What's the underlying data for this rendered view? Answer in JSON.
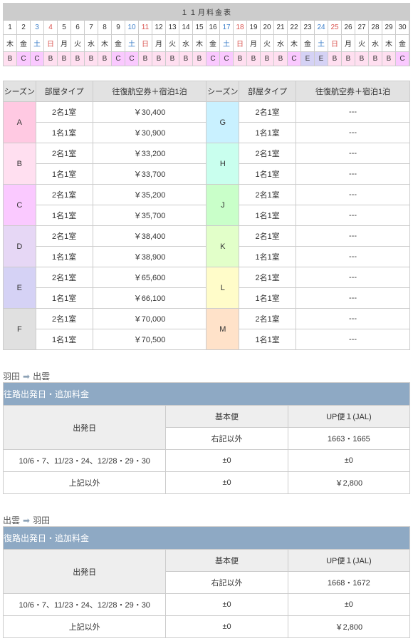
{
  "calendar": {
    "title": "１１月料金表",
    "days": [
      1,
      2,
      3,
      4,
      5,
      6,
      7,
      8,
      9,
      10,
      11,
      12,
      13,
      14,
      15,
      16,
      17,
      18,
      19,
      20,
      21,
      22,
      23,
      24,
      25,
      26,
      27,
      28,
      29,
      30
    ],
    "dow": [
      "木",
      "金",
      "土",
      "日",
      "月",
      "火",
      "水",
      "木",
      "金",
      "土",
      "日",
      "月",
      "火",
      "水",
      "木",
      "金",
      "土",
      "日",
      "月",
      "火",
      "水",
      "木",
      "金",
      "土",
      "日",
      "月",
      "火",
      "水",
      "木",
      "金"
    ],
    "dowclass": [
      "",
      "",
      "sat",
      "sun",
      "",
      "",
      "",
      "",
      "",
      "sat",
      "sun",
      "",
      "",
      "",
      "",
      "",
      "sat",
      "sun",
      "",
      "",
      "",
      "",
      "",
      "sat",
      "sun",
      "",
      "",
      "",
      "",
      ""
    ],
    "season": [
      "B",
      "C",
      "C",
      "B",
      "B",
      "B",
      "B",
      "B",
      "C",
      "C",
      "B",
      "B",
      "B",
      "B",
      "B",
      "C",
      "C",
      "B",
      "B",
      "B",
      "B",
      "C",
      "E",
      "E",
      "B",
      "B",
      "B",
      "B",
      "B",
      "C"
    ],
    "seasonclass": [
      "szB",
      "szC",
      "szC",
      "szB",
      "szB",
      "szB",
      "szB",
      "szB",
      "szC",
      "szC",
      "szB",
      "szB",
      "szB",
      "szB",
      "szB",
      "szC",
      "szC",
      "szB",
      "szB",
      "szB",
      "szB",
      "szC",
      "szE",
      "szE",
      "szB",
      "szB",
      "szB",
      "szB",
      "szB",
      "szC"
    ]
  },
  "priceHeaders": {
    "season": "シーズン",
    "room": "部屋タイプ",
    "price": "往復航空券＋宿泊1泊"
  },
  "rooms": {
    "r2": "2名1室",
    "r1": "1名1室"
  },
  "prices": {
    "left": [
      {
        "s": "A",
        "c": "pA",
        "p2": "￥30,400",
        "p1": "￥30,900"
      },
      {
        "s": "B",
        "c": "pB",
        "p2": "￥33,200",
        "p1": "￥33,700"
      },
      {
        "s": "C",
        "c": "pC",
        "p2": "￥35,200",
        "p1": "￥35,700"
      },
      {
        "s": "D",
        "c": "pD",
        "p2": "￥38,400",
        "p1": "￥38,900"
      },
      {
        "s": "E",
        "c": "pE",
        "p2": "￥65,600",
        "p1": "￥66,100"
      },
      {
        "s": "F",
        "c": "pF",
        "p2": "￥70,000",
        "p1": "￥70,500"
      }
    ],
    "right": [
      {
        "s": "G",
        "c": "pG",
        "p2": "---",
        "p1": "---"
      },
      {
        "s": "H",
        "c": "pH",
        "p2": "---",
        "p1": "---"
      },
      {
        "s": "J",
        "c": "pJ",
        "p2": "---",
        "p1": "---"
      },
      {
        "s": "K",
        "c": "pK",
        "p2": "---",
        "p1": "---"
      },
      {
        "s": "L",
        "c": "pL",
        "p2": "---",
        "p1": "---"
      },
      {
        "s": "M",
        "c": "pM",
        "p2": "---",
        "p1": "---"
      }
    ]
  },
  "routes": [
    {
      "from": "羽田",
      "to": "出雲",
      "title": "往路出発日・追加料金",
      "h": {
        "dep": "出発日",
        "base": "基本便",
        "up": "UP便１(JAL)",
        "basesub": "右記以外",
        "upsub": "1663・1665"
      },
      "rows": [
        {
          "d": "10/6・7、11/23・24、12/28・29・30",
          "b": "±0",
          "u": "±0"
        },
        {
          "d": "上記以外",
          "b": "±0",
          "u": "￥2,800"
        }
      ]
    },
    {
      "from": "出雲",
      "to": "羽田",
      "title": "復路出発日・追加料金",
      "h": {
        "dep": "出発日",
        "base": "基本便",
        "up": "UP便１(JAL)",
        "basesub": "右記以外",
        "upsub": "1668・1672"
      },
      "rows": [
        {
          "d": "10/6・7、11/23・24、12/28・29・30",
          "b": "±0",
          "u": "±0"
        },
        {
          "d": "上記以外",
          "b": "±0",
          "u": "￥2,800"
        }
      ]
    }
  ]
}
